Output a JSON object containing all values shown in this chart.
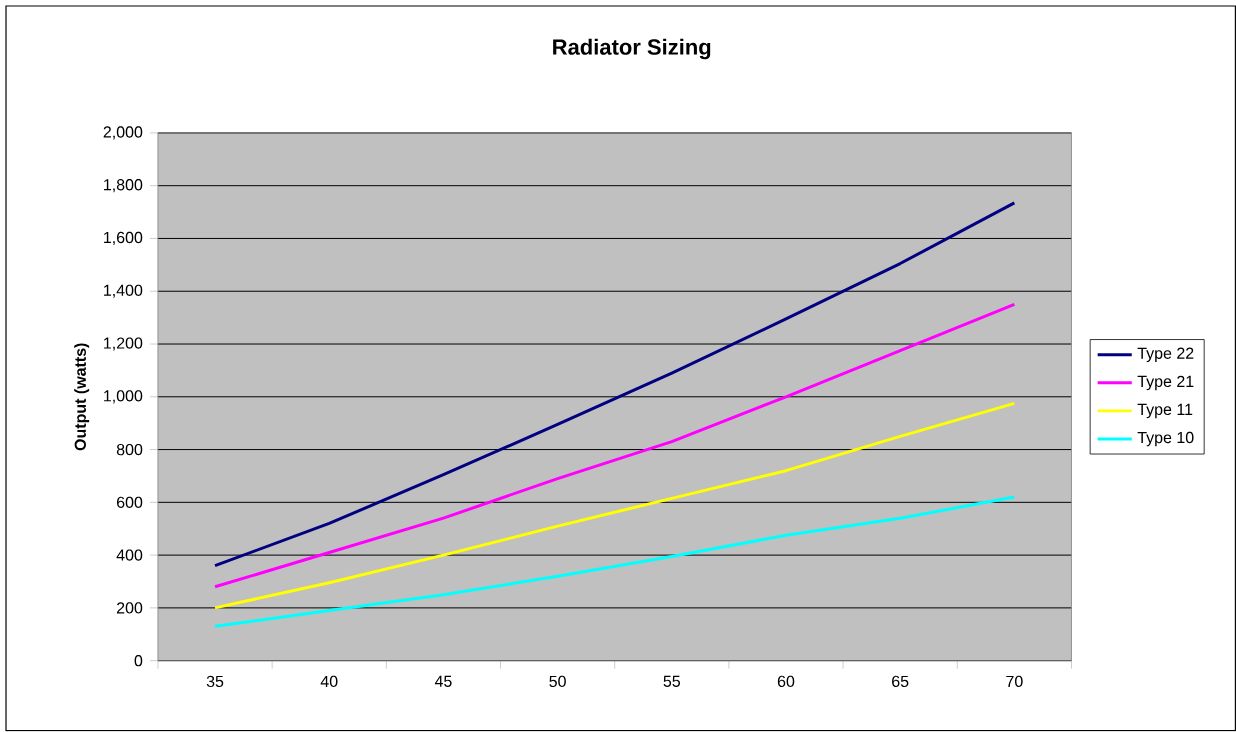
{
  "chart_data": {
    "type": "line",
    "title": "Radiator Sizing",
    "ylabel": "Output (watts)",
    "categories": [
      "35",
      "40",
      "45",
      "50",
      "55",
      "60",
      "65",
      "70"
    ],
    "series": [
      {
        "name": "Type 22",
        "color": "#000080",
        "values": [
          360,
          520,
          705,
          895,
          1090,
          1295,
          1505,
          1735
        ]
      },
      {
        "name": "Type 21",
        "color": "#ff00ff",
        "values": [
          280,
          410,
          540,
          690,
          830,
          1000,
          1175,
          1350
        ]
      },
      {
        "name": "Type 11",
        "color": "#ffff00",
        "values": [
          200,
          295,
          400,
          510,
          615,
          720,
          850,
          975
        ]
      },
      {
        "name": "Type 10",
        "color": "#00ffff",
        "values": [
          130,
          190,
          250,
          320,
          395,
          475,
          540,
          620
        ]
      }
    ],
    "ylim": [
      0,
      2000
    ],
    "yticks": [
      0,
      200,
      400,
      600,
      800,
      {
        "value": 1000,
        "label": "1,000"
      },
      {
        "value": 1200,
        "label": "1,200"
      },
      {
        "value": 1400,
        "label": "1,400"
      },
      {
        "value": 1600,
        "label": "1,600"
      },
      {
        "value": 1800,
        "label": "1,800"
      },
      {
        "value": 2000,
        "label": "2,000"
      }
    ],
    "grid": "y",
    "legend": "right"
  }
}
